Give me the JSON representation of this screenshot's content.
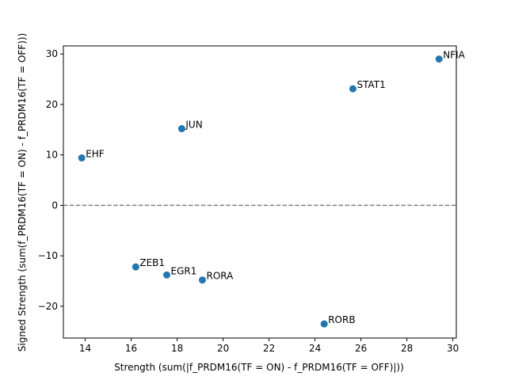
{
  "chart_data": {
    "type": "scatter",
    "title": "",
    "xlabel": "Strength (sum(|f_PRDM16(TF = ON) - f_PRDM16(TF = OFF)|))",
    "ylabel": "Signed Strength (sum(f_PRDM16(TF = ON) - f_PRDM16(TF = OFF)))",
    "xlim": [
      13.05,
      30.15
    ],
    "ylim": [
      -26.3,
      31.6
    ],
    "xticks": [
      14,
      16,
      18,
      20,
      22,
      24,
      26,
      28,
      30
    ],
    "yticks": [
      -20,
      -10,
      0,
      10,
      20,
      30
    ],
    "reference_line": {
      "y": 0,
      "style": "dashed",
      "color": "#808080"
    },
    "grid": false,
    "point_color": "#1f77b4",
    "points": [
      {
        "label": "NFIA",
        "x": 29.4,
        "y": 29.0
      },
      {
        "label": "STAT1",
        "x": 25.65,
        "y": 23.1
      },
      {
        "label": "JUN",
        "x": 18.2,
        "y": 15.2
      },
      {
        "label": "EHF",
        "x": 13.85,
        "y": 9.4
      },
      {
        "label": "ZEB1",
        "x": 16.2,
        "y": -12.2
      },
      {
        "label": "EGR1",
        "x": 17.55,
        "y": -13.8
      },
      {
        "label": "RORA",
        "x": 19.1,
        "y": -14.8
      },
      {
        "label": "RORB",
        "x": 24.4,
        "y": -23.5
      }
    ]
  }
}
